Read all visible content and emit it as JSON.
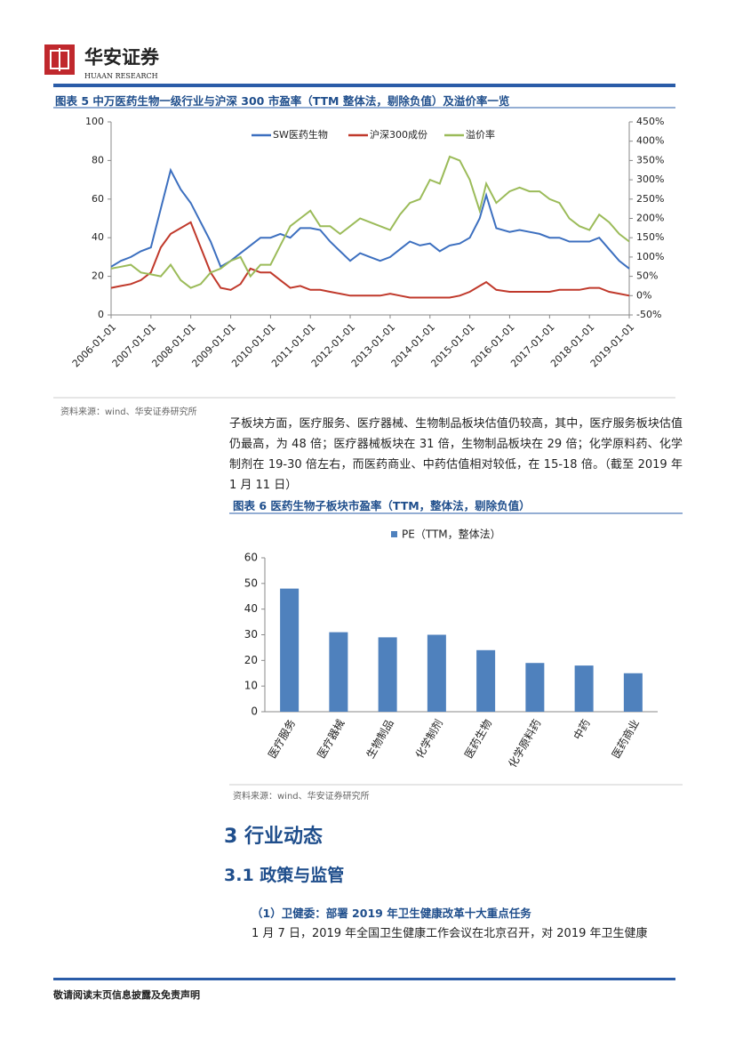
{
  "header": {
    "brand": "华安证券",
    "brand_en": "HUAAN RESEARCH"
  },
  "figure5": {
    "caption": "图表 5 中万医药生物一级行业与沪深 300 市盈率（TTM 整体法，剔除负值）及溢价率一览",
    "source": "资料来源：wind、华安证券研究所"
  },
  "paragraph1": "子板块方面，医疗服务、医疗器械、生物制品板块估值仍较高，其中，医疗服务板块估值仍最高，为 48 倍；医疗器械板块在 31 倍，生物制品板块在 29 倍；化学原料药、化学制剂在 19-30 倍左右，而医药商业、中药估值相对较低，在 15-18 倍。（截至 2019 年 1 月 11 日）",
  "figure6": {
    "caption": "图表 6 医药生物子板块市盈率（TTM，整体法，剔除负值）",
    "source": "资料来源：wind、华安证券研究所"
  },
  "section": "3 行业动态",
  "subsection": "3.1 政策与监管",
  "item": "（1）卫健委：部署 2019 年卫生健康改革十大重点任务",
  "paragraph2": "1 月 7 日，2019 年全国卫生健康工作会议在北京召开，对 2019 年卫生健康",
  "footer": "敬请阅读末页信息披露及免责声明",
  "chart_data": [
    {
      "type": "line",
      "x": [
        "2006-01-01",
        "2006-04-01",
        "2006-07-01",
        "2006-10-01",
        "2007-01-01",
        "2007-04-01",
        "2007-07-01",
        "2007-10-01",
        "2008-01-01",
        "2008-04-01",
        "2008-07-01",
        "2008-10-01",
        "2009-01-01",
        "2009-04-01",
        "2009-07-01",
        "2009-10-01",
        "2010-01-01",
        "2010-04-01",
        "2010-07-01",
        "2010-10-01",
        "2011-01-01",
        "2011-04-01",
        "2011-07-01",
        "2011-10-01",
        "2012-01-01",
        "2012-04-01",
        "2012-07-01",
        "2012-10-01",
        "2013-01-01",
        "2013-04-01",
        "2013-07-01",
        "2013-10-01",
        "2014-01-01",
        "2014-04-01",
        "2014-07-01",
        "2014-10-01",
        "2015-01-01",
        "2015-04-01",
        "2015-06-01",
        "2015-09-01",
        "2016-01-01",
        "2016-04-01",
        "2016-07-01",
        "2016-10-01",
        "2017-01-01",
        "2017-04-01",
        "2017-07-01",
        "2017-10-01",
        "2018-01-01",
        "2018-04-01",
        "2018-07-01",
        "2018-10-01",
        "2019-01-01"
      ],
      "series": [
        {
          "name": "SW医药生物",
          "color": "#3c6fbf",
          "values": [
            25,
            28,
            30,
            33,
            35,
            55,
            75,
            65,
            58,
            48,
            38,
            25,
            28,
            32,
            36,
            40,
            40,
            42,
            40,
            45,
            45,
            44,
            38,
            33,
            28,
            32,
            30,
            28,
            30,
            34,
            38,
            36,
            37,
            33,
            36,
            37,
            40,
            50,
            62,
            45,
            43,
            44,
            43,
            42,
            40,
            40,
            38,
            38,
            38,
            40,
            34,
            28,
            24
          ]
        },
        {
          "name": "沪深300成份",
          "color": "#c0392b",
          "values": [
            14,
            15,
            16,
            18,
            22,
            35,
            42,
            45,
            48,
            35,
            22,
            14,
            13,
            16,
            24,
            22,
            22,
            18,
            14,
            15,
            13,
            13,
            12,
            11,
            10,
            10,
            10,
            10,
            11,
            10,
            9,
            9,
            9,
            9,
            9,
            10,
            12,
            15,
            17,
            13,
            12,
            12,
            12,
            12,
            12,
            13,
            13,
            13,
            14,
            14,
            12,
            11,
            10
          ]
        },
        {
          "name": "溢价率",
          "color": "#9bbb59",
          "axis": "y2",
          "values": [
            70,
            75,
            80,
            60,
            55,
            50,
            80,
            40,
            20,
            30,
            60,
            70,
            90,
            100,
            50,
            80,
            80,
            130,
            180,
            200,
            220,
            180,
            180,
            160,
            180,
            200,
            190,
            180,
            170,
            210,
            240,
            250,
            300,
            290,
            360,
            350,
            300,
            220,
            290,
            240,
            270,
            280,
            270,
            270,
            250,
            240,
            200,
            180,
            170,
            210,
            190,
            160,
            140
          ]
        }
      ],
      "xlim": [
        "2006-01-01",
        "2019-01-01"
      ],
      "xticks": [
        "2006-01-01",
        "2007-01-01",
        "2008-01-01",
        "2009-01-01",
        "2010-01-01",
        "2011-01-01",
        "2012-01-01",
        "2013-01-01",
        "2014-01-01",
        "2015-01-01",
        "2016-01-01",
        "2017-01-01",
        "2018-01-01",
        "2019-01-01"
      ],
      "ylim": [
        0,
        100
      ],
      "yticks": [
        0,
        20,
        40,
        60,
        80,
        100
      ],
      "y2lim": [
        -50,
        450
      ],
      "y2ticks": [
        {
          "value": -50,
          "label": "-50%"
        },
        {
          "value": 0,
          "label": "0%"
        },
        {
          "value": 50,
          "label": "50%"
        },
        {
          "value": 100,
          "label": "100%"
        },
        {
          "value": 150,
          "label": "150%"
        },
        {
          "value": 200,
          "label": "200%"
        },
        {
          "value": 250,
          "label": "250%"
        },
        {
          "value": 300,
          "label": "300%"
        },
        {
          "value": 350,
          "label": "350%"
        },
        {
          "value": 400,
          "label": "400%"
        },
        {
          "value": 450,
          "label": "450%"
        }
      ]
    },
    {
      "type": "bar",
      "series": [
        {
          "name": "PE（TTM，整体法）",
          "color": "#4f81bd",
          "values": [
            48,
            31,
            29,
            30,
            24,
            19,
            18,
            15
          ]
        }
      ],
      "categories": [
        "医疗服务",
        "医疗器械",
        "生物制品",
        "化学制剂",
        "医药生物",
        "化学原料药",
        "中药",
        "医药商业"
      ],
      "ylim": [
        0,
        60
      ],
      "yticks": [
        0,
        10,
        20,
        30,
        40,
        50,
        60
      ]
    }
  ]
}
